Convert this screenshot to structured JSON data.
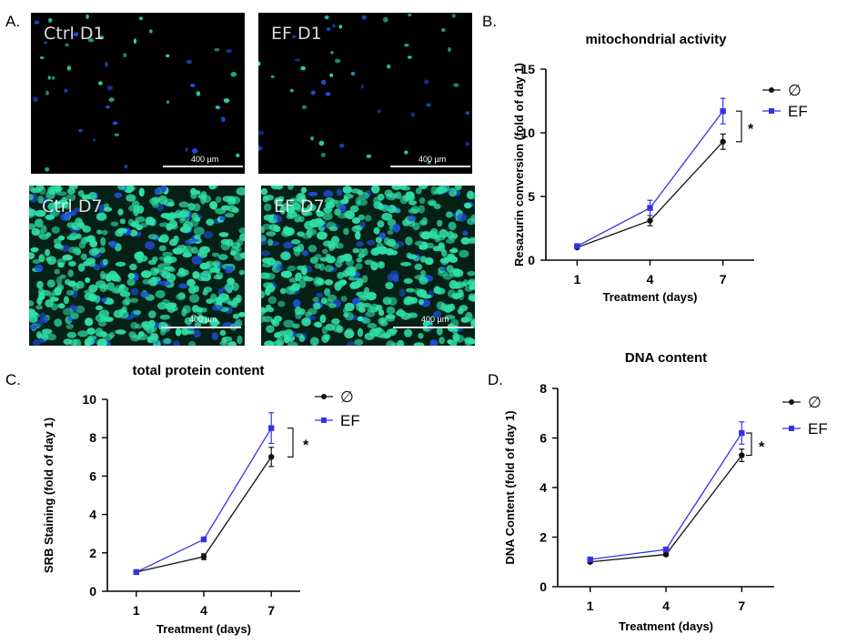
{
  "panels": {
    "a": {
      "letter": "A.",
      "images": [
        {
          "label": "Ctrl D1",
          "scale": "400 µm",
          "density": "sparse"
        },
        {
          "label": "EF D1",
          "scale": "400 µm",
          "density": "sparse"
        },
        {
          "label": "Ctrl D7",
          "scale": "400 µm",
          "density": "dense"
        },
        {
          "label": "EF D7",
          "scale": "400 µm",
          "density": "dense"
        }
      ]
    },
    "b": {
      "letter": "B."
    },
    "c": {
      "letter": "C."
    },
    "d": {
      "letter": "D."
    }
  },
  "colors": {
    "control": "#111111",
    "ef": "#3333e6",
    "cell_green": "#2fe0a8",
    "cell_blue": "#1f4fd8"
  },
  "chart_data": [
    {
      "panel": "B",
      "type": "line",
      "title": "mitochondrial activity",
      "xlabel": "Treatment (days)",
      "ylabel": "Resazurin conversion (fold of day 1)",
      "categories": [
        "1",
        "4",
        "7"
      ],
      "ylim": [
        0,
        15
      ],
      "yticks": [
        "0",
        "5",
        "10",
        "15"
      ],
      "series": [
        {
          "name": "∅",
          "values": [
            1.0,
            3.1,
            9.3
          ],
          "errors": [
            0.1,
            0.4,
            0.6
          ]
        },
        {
          "name": "EF",
          "values": [
            1.1,
            4.1,
            11.7
          ],
          "errors": [
            0.1,
            0.6,
            1.0
          ]
        }
      ],
      "annotation": "*"
    },
    {
      "panel": "C",
      "type": "line",
      "title": "total protein content",
      "xlabel": "Treatment (days)",
      "ylabel": "SRB Staining (fold of day 1)",
      "categories": [
        "1",
        "4",
        "7"
      ],
      "ylim": [
        0,
        10
      ],
      "yticks": [
        "0",
        "2",
        "4",
        "6",
        "8",
        "10"
      ],
      "series": [
        {
          "name": "∅",
          "values": [
            1.0,
            1.8,
            7.0
          ],
          "errors": [
            0.05,
            0.15,
            0.5
          ]
        },
        {
          "name": "EF",
          "values": [
            1.0,
            2.7,
            8.5
          ],
          "errors": [
            0.05,
            0.05,
            0.8
          ]
        }
      ],
      "annotation": "*"
    },
    {
      "panel": "D",
      "type": "line",
      "title": "DNA content",
      "xlabel": "Treatment (days)",
      "ylabel": "DNA Content (fold of day 1)",
      "categories": [
        "1",
        "4",
        "7"
      ],
      "ylim": [
        0,
        8
      ],
      "yticks": [
        "0",
        "2",
        "4",
        "6",
        "8"
      ],
      "series": [
        {
          "name": "∅",
          "values": [
            1.0,
            1.3,
            5.3
          ],
          "errors": [
            0.05,
            0.05,
            0.25
          ]
        },
        {
          "name": "EF",
          "values": [
            1.1,
            1.5,
            6.2
          ],
          "errors": [
            0.05,
            0.05,
            0.45
          ]
        }
      ],
      "annotation": "*"
    }
  ]
}
